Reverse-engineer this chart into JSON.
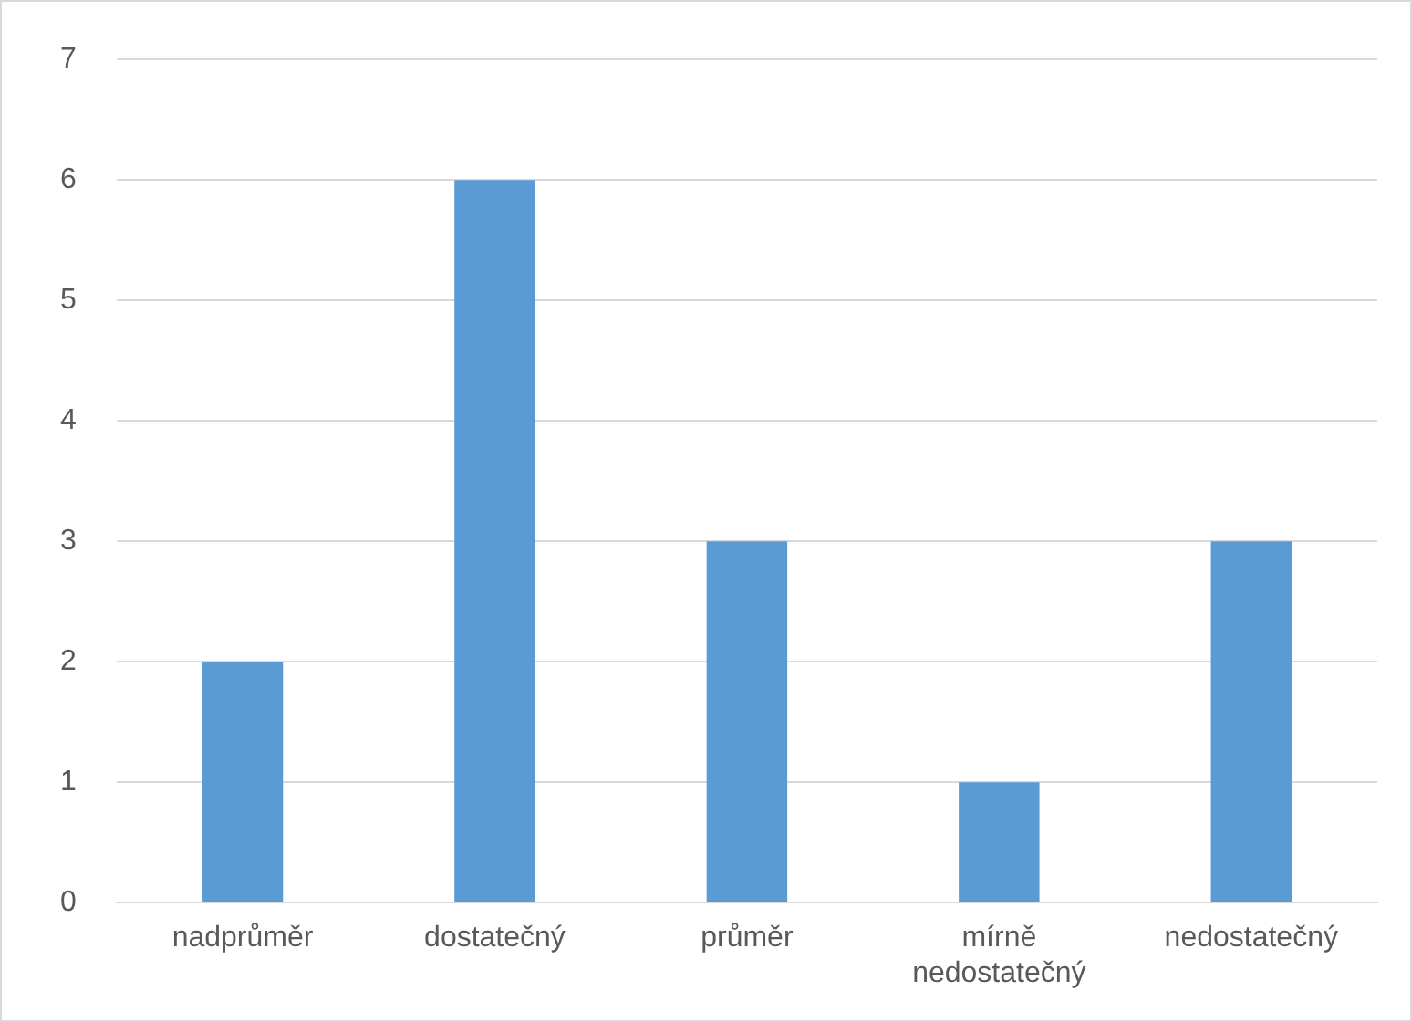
{
  "chart_data": {
    "type": "bar",
    "categories": [
      "nadprůměr",
      "dostatečný",
      "průměr",
      "mírně nedostatečný",
      "nedostatečný"
    ],
    "values": [
      2,
      6,
      3,
      1,
      3
    ],
    "color": "#5b9bd5",
    "ylim": [
      0,
      7
    ],
    "yticks": [
      0,
      1,
      2,
      3,
      4,
      5,
      6,
      7
    ],
    "grid": "y",
    "legend": false
  }
}
